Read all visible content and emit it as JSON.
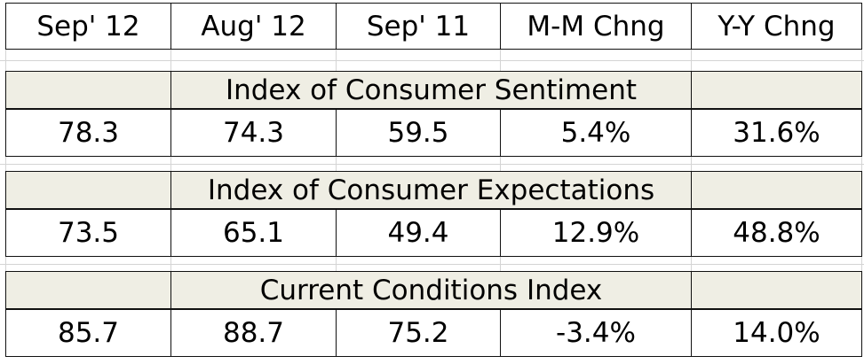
{
  "header": [
    "Sep' 12",
    "Aug' 12",
    "Sep' 11",
    "M-M Chng",
    "Y-Y Chng"
  ],
  "sections": [
    {
      "title": "Index of Consumer Sentiment",
      "values": [
        "78.3",
        "74.3",
        "59.5",
        "5.4%",
        "31.6%"
      ]
    },
    {
      "title": "Index of Consumer Expectations",
      "values": [
        "73.5",
        "65.1",
        "49.4",
        "12.9%",
        "48.8%"
      ]
    },
    {
      "title": "Current Conditions Index",
      "values": [
        "85.7",
        "88.7",
        "75.2",
        "-3.4%",
        "14.0%"
      ]
    }
  ]
}
